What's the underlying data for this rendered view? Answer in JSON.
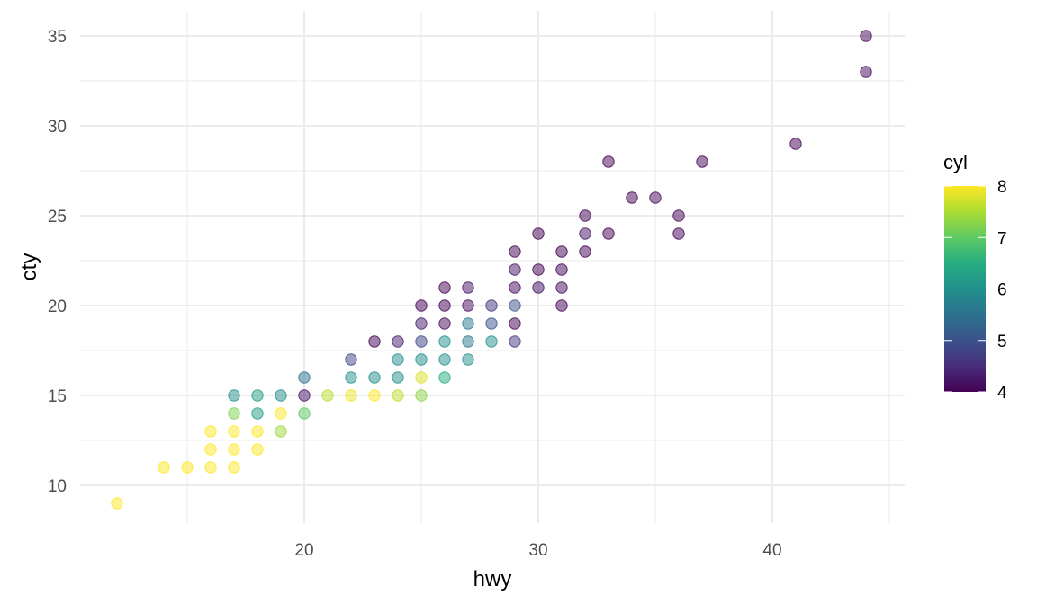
{
  "chart_data": {
    "type": "scatter",
    "title": "",
    "xlabel": "hwy",
    "ylabel": "cty",
    "xlim": [
      11,
      46.2
    ],
    "ylim": [
      7.9,
      36.4
    ],
    "x_ticks": [
      20,
      30,
      40
    ],
    "y_ticks": [
      10,
      15,
      20,
      25,
      30,
      35
    ],
    "grid": true,
    "legend": {
      "title": "cyl",
      "type": "colorbar",
      "position": "right",
      "range": [
        4,
        8
      ],
      "ticks": [
        4,
        5,
        6,
        7,
        8
      ],
      "palette": "viridis",
      "colors": [
        "#440154",
        "#3b528b",
        "#21908c",
        "#5dc963",
        "#fde725"
      ]
    },
    "point_alpha": 0.5,
    "points": [
      {
        "hwy": 12,
        "cty": 9,
        "cyl": 8
      },
      {
        "hwy": 14,
        "cty": 11,
        "cyl": 8
      },
      {
        "hwy": 15,
        "cty": 11,
        "cyl": 8
      },
      {
        "hwy": 16,
        "cty": 11,
        "cyl": 8
      },
      {
        "hwy": 17,
        "cty": 11,
        "cyl": 8
      },
      {
        "hwy": 16,
        "cty": 12,
        "cyl": 8
      },
      {
        "hwy": 17,
        "cty": 12,
        "cyl": 8
      },
      {
        "hwy": 18,
        "cty": 12,
        "cyl": 8
      },
      {
        "hwy": 16,
        "cty": 13,
        "cyl": 8
      },
      {
        "hwy": 17,
        "cty": 13,
        "cyl": 8
      },
      {
        "hwy": 18,
        "cty": 13,
        "cyl": 8
      },
      {
        "hwy": 19,
        "cty": 13,
        "cyl": 7.4
      },
      {
        "hwy": 17,
        "cty": 14,
        "cyl": 7.2
      },
      {
        "hwy": 18,
        "cty": 14,
        "cyl": 6.2
      },
      {
        "hwy": 19,
        "cty": 14,
        "cyl": 8
      },
      {
        "hwy": 20,
        "cty": 14,
        "cyl": 7
      },
      {
        "hwy": 17,
        "cty": 15,
        "cyl": 6
      },
      {
        "hwy": 18,
        "cty": 15,
        "cyl": 6.2
      },
      {
        "hwy": 19,
        "cty": 15,
        "cyl": 6
      },
      {
        "hwy": 20,
        "cty": 15,
        "cyl": 4.2
      },
      {
        "hwy": 21,
        "cty": 15,
        "cyl": 7.6
      },
      {
        "hwy": 22,
        "cty": 15,
        "cyl": 7.9
      },
      {
        "hwy": 23,
        "cty": 15,
        "cyl": 8
      },
      {
        "hwy": 24,
        "cty": 15,
        "cyl": 7.6
      },
      {
        "hwy": 25,
        "cty": 15,
        "cyl": 7.3
      },
      {
        "hwy": 20,
        "cty": 16,
        "cyl": 5.5
      },
      {
        "hwy": 22,
        "cty": 16,
        "cyl": 6
      },
      {
        "hwy": 23,
        "cty": 16,
        "cyl": 6
      },
      {
        "hwy": 24,
        "cty": 16,
        "cyl": 6
      },
      {
        "hwy": 25,
        "cty": 16,
        "cyl": 7.8
      },
      {
        "hwy": 26,
        "cty": 16,
        "cyl": 6.5
      },
      {
        "hwy": 22,
        "cty": 17,
        "cyl": 4.8
      },
      {
        "hwy": 24,
        "cty": 17,
        "cyl": 6
      },
      {
        "hwy": 25,
        "cty": 17,
        "cyl": 6
      },
      {
        "hwy": 26,
        "cty": 17,
        "cyl": 6
      },
      {
        "hwy": 27,
        "cty": 17,
        "cyl": 6
      },
      {
        "hwy": 23,
        "cty": 18,
        "cyl": 4
      },
      {
        "hwy": 24,
        "cty": 18,
        "cyl": 4.3
      },
      {
        "hwy": 25,
        "cty": 18,
        "cyl": 4.8
      },
      {
        "hwy": 26,
        "cty": 18,
        "cyl": 6
      },
      {
        "hwy": 27,
        "cty": 18,
        "cyl": 5.6
      },
      {
        "hwy": 28,
        "cty": 18,
        "cyl": 6
      },
      {
        "hwy": 29,
        "cty": 18,
        "cyl": 4.6
      },
      {
        "hwy": 25,
        "cty": 19,
        "cyl": 4.3
      },
      {
        "hwy": 26,
        "cty": 19,
        "cyl": 4.1
      },
      {
        "hwy": 27,
        "cty": 19,
        "cyl": 5.6
      },
      {
        "hwy": 28,
        "cty": 19,
        "cyl": 5
      },
      {
        "hwy": 29,
        "cty": 19,
        "cyl": 4
      },
      {
        "hwy": 25,
        "cty": 20,
        "cyl": 4
      },
      {
        "hwy": 26,
        "cty": 20,
        "cyl": 4
      },
      {
        "hwy": 27,
        "cty": 20,
        "cyl": 4.1
      },
      {
        "hwy": 28,
        "cty": 20,
        "cyl": 4.6
      },
      {
        "hwy": 29,
        "cty": 20,
        "cyl": 5
      },
      {
        "hwy": 31,
        "cty": 20,
        "cyl": 4
      },
      {
        "hwy": 26,
        "cty": 21,
        "cyl": 4
      },
      {
        "hwy": 27,
        "cty": 21,
        "cyl": 4.2
      },
      {
        "hwy": 29,
        "cty": 21,
        "cyl": 4.1
      },
      {
        "hwy": 30,
        "cty": 21,
        "cyl": 4.2
      },
      {
        "hwy": 31,
        "cty": 21,
        "cyl": 4.1
      },
      {
        "hwy": 29,
        "cty": 22,
        "cyl": 4.2
      },
      {
        "hwy": 30,
        "cty": 22,
        "cyl": 4
      },
      {
        "hwy": 31,
        "cty": 22,
        "cyl": 4
      },
      {
        "hwy": 29,
        "cty": 23,
        "cyl": 4
      },
      {
        "hwy": 31,
        "cty": 23,
        "cyl": 4
      },
      {
        "hwy": 32,
        "cty": 23,
        "cyl": 4
      },
      {
        "hwy": 30,
        "cty": 24,
        "cyl": 4
      },
      {
        "hwy": 32,
        "cty": 24,
        "cyl": 4.2
      },
      {
        "hwy": 33,
        "cty": 24,
        "cyl": 4
      },
      {
        "hwy": 36,
        "cty": 24,
        "cyl": 4
      },
      {
        "hwy": 32,
        "cty": 25,
        "cyl": 4
      },
      {
        "hwy": 36,
        "cty": 25,
        "cyl": 4
      },
      {
        "hwy": 34,
        "cty": 26,
        "cyl": 4
      },
      {
        "hwy": 35,
        "cty": 26,
        "cyl": 4.1
      },
      {
        "hwy": 33,
        "cty": 28,
        "cyl": 4
      },
      {
        "hwy": 37,
        "cty": 28,
        "cyl": 4
      },
      {
        "hwy": 41,
        "cty": 29,
        "cyl": 4
      },
      {
        "hwy": 44,
        "cty": 33,
        "cyl": 4
      },
      {
        "hwy": 44,
        "cty": 35,
        "cyl": 4
      }
    ]
  }
}
